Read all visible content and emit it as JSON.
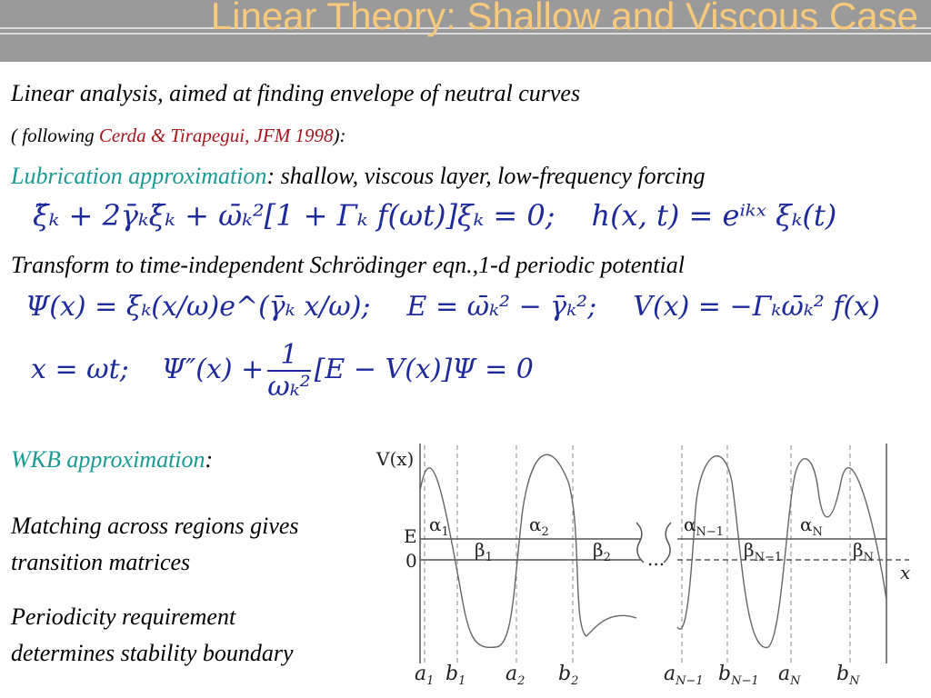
{
  "header": {
    "title": "Linear Theory: Shallow and Viscous Case"
  },
  "body": {
    "intro": "Linear analysis, aimed at finding envelope of neutral curves",
    "citation": {
      "prefix": "( following ",
      "ref": "Cerda & Tirapegui, JFM 1998",
      "suffix": "):"
    },
    "lubrication": {
      "term": "Lubrication approximation",
      "rest": ": shallow, viscous layer, low-frequency forcing"
    },
    "equation1": [
      "ξ̈ₖ + 2γ̄ₖξ̇ₖ + ω̄ₖ²[1 + Γₖ f(ωt)]ξₖ = 0;",
      "h(x, t) = eⁱᵏˣ ξₖ(t)"
    ],
    "transform": "Transform to time-independent Schrödinger eqn.,1-d periodic potential",
    "equation2": [
      "Ψ(x) = ξₖ(x/ω)e^(γ̄ₖ x/ω);",
      "E = ω̄ₖ² − γ̄ₖ²;",
      "V(x) = −Γₖω̄ₖ² f(x)"
    ],
    "equation3": {
      "left": "x = ωt;",
      "mid": "Ψ″(x) +",
      "numerator": "1",
      "denominator": "ωₖ²",
      "right": "[E − V(x)]Ψ = 0"
    },
    "wkb": {
      "term": "WKB approximation",
      "rest": ":"
    },
    "matching": [
      "Matching across regions gives",
      "transition matrices"
    ],
    "periodicity": [
      "Periodicity requirement",
      "determines stability boundary"
    ]
  },
  "figure": {
    "labels": [
      {
        "base": "V(x)"
      },
      {
        "base": "E"
      },
      {
        "base": "0"
      },
      {
        "base": "x"
      },
      {
        "base": "..."
      },
      {
        "base": "α",
        "sub": "1"
      },
      {
        "base": "α",
        "sub": "2"
      },
      {
        "base": "α",
        "sub": "N−1"
      },
      {
        "base": "α",
        "sub": "N"
      },
      {
        "base": "β",
        "sub": "1"
      },
      {
        "base": "β",
        "sub": "2"
      },
      {
        "base": "β",
        "sub": "N−1"
      },
      {
        "base": "β",
        "sub": "N"
      },
      {
        "base": "a",
        "sub": "1"
      },
      {
        "base": "b",
        "sub": "1"
      },
      {
        "base": "a",
        "sub": "2"
      },
      {
        "base": "b",
        "sub": "2"
      },
      {
        "base": "a",
        "sub": "N−1"
      },
      {
        "base": "b",
        "sub": "N−1"
      },
      {
        "base": "a",
        "sub": "N"
      },
      {
        "base": "b",
        "sub": "N"
      }
    ]
  }
}
